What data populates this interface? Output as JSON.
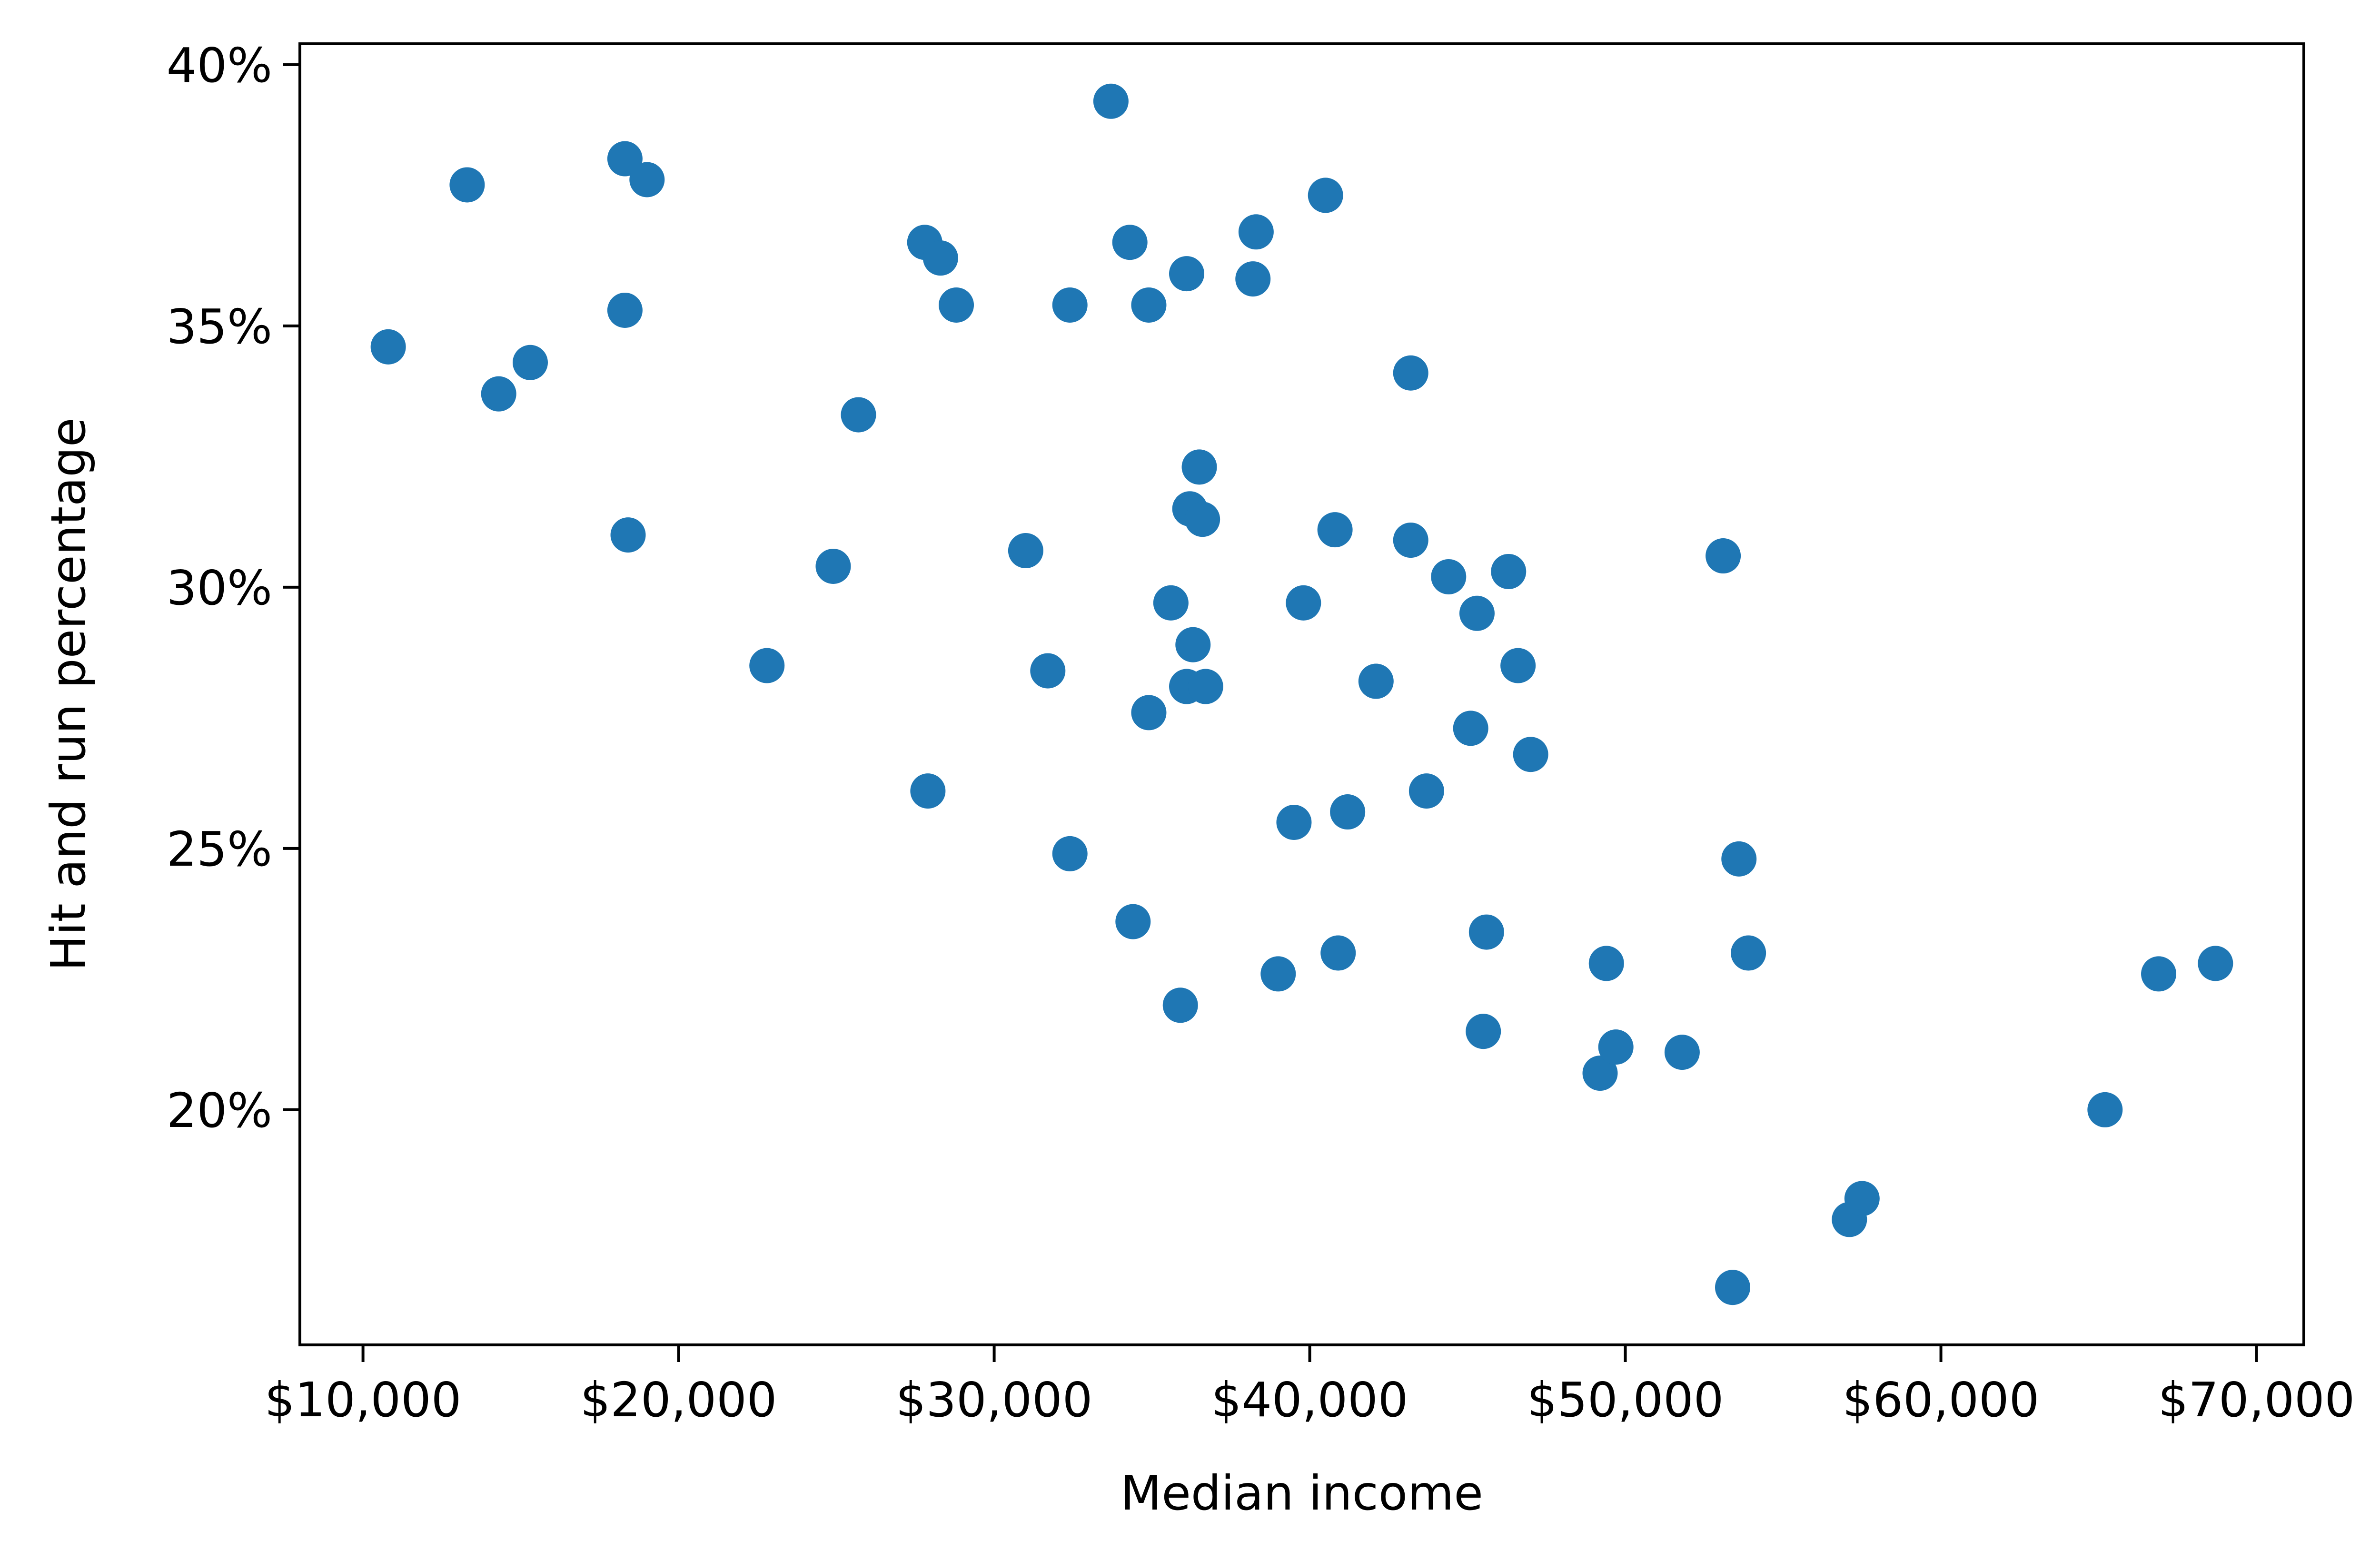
{
  "chart_data": {
    "type": "scatter",
    "title": "",
    "xlabel": "Median income",
    "ylabel": "Hit and run percentage",
    "xlim": [
      8000,
      71500
    ],
    "ylim": [
      15.5,
      40.4
    ],
    "grid": false,
    "legend": "none",
    "colors": {
      "points": "#1f77b4",
      "axes": "#000000",
      "background": "#ffffff"
    },
    "x_ticks": [
      {
        "value": 10000,
        "label": "$10,000"
      },
      {
        "value": 20000,
        "label": "$20,000"
      },
      {
        "value": 30000,
        "label": "$30,000"
      },
      {
        "value": 40000,
        "label": "$40,000"
      },
      {
        "value": 50000,
        "label": "$50,000"
      },
      {
        "value": 60000,
        "label": "$60,000"
      },
      {
        "value": 70000,
        "label": "$70,000"
      }
    ],
    "y_ticks": [
      {
        "value": 20,
        "label": "20%"
      },
      {
        "value": 25,
        "label": "25%"
      },
      {
        "value": 30,
        "label": "30%"
      },
      {
        "value": 35,
        "label": "35%"
      },
      {
        "value": 40,
        "label": "40%"
      }
    ],
    "points": [
      {
        "x": 10800,
        "y": 34.6
      },
      {
        "x": 13300,
        "y": 37.7
      },
      {
        "x": 14300,
        "y": 33.7
      },
      {
        "x": 15300,
        "y": 34.3
      },
      {
        "x": 18300,
        "y": 38.2
      },
      {
        "x": 19000,
        "y": 37.8
      },
      {
        "x": 18300,
        "y": 35.3
      },
      {
        "x": 18400,
        "y": 31.0
      },
      {
        "x": 22800,
        "y": 28.5
      },
      {
        "x": 24900,
        "y": 30.4
      },
      {
        "x": 25700,
        "y": 33.3
      },
      {
        "x": 27800,
        "y": 36.6
      },
      {
        "x": 28300,
        "y": 36.3
      },
      {
        "x": 28800,
        "y": 35.4
      },
      {
        "x": 27900,
        "y": 26.1
      },
      {
        "x": 31000,
        "y": 30.7
      },
      {
        "x": 31700,
        "y": 28.4
      },
      {
        "x": 32400,
        "y": 35.4
      },
      {
        "x": 32400,
        "y": 24.9
      },
      {
        "x": 33700,
        "y": 39.3
      },
      {
        "x": 34300,
        "y": 36.6
      },
      {
        "x": 34900,
        "y": 35.4
      },
      {
        "x": 34400,
        "y": 23.6
      },
      {
        "x": 34900,
        "y": 27.6
      },
      {
        "x": 35600,
        "y": 29.7
      },
      {
        "x": 35900,
        "y": 22.0
      },
      {
        "x": 36100,
        "y": 36.0
      },
      {
        "x": 36100,
        "y": 28.1
      },
      {
        "x": 36200,
        "y": 31.5
      },
      {
        "x": 36300,
        "y": 28.9
      },
      {
        "x": 36500,
        "y": 32.3
      },
      {
        "x": 36600,
        "y": 31.3
      },
      {
        "x": 36700,
        "y": 28.1
      },
      {
        "x": 38200,
        "y": 35.9
      },
      {
        "x": 38300,
        "y": 36.8
      },
      {
        "x": 39000,
        "y": 22.6
      },
      {
        "x": 39500,
        "y": 25.5
      },
      {
        "x": 39800,
        "y": 29.7
      },
      {
        "x": 40500,
        "y": 37.5
      },
      {
        "x": 40800,
        "y": 31.1
      },
      {
        "x": 40900,
        "y": 23.0
      },
      {
        "x": 41200,
        "y": 25.7
      },
      {
        "x": 42100,
        "y": 28.2
      },
      {
        "x": 43200,
        "y": 34.1
      },
      {
        "x": 43200,
        "y": 30.9
      },
      {
        "x": 43700,
        "y": 26.1
      },
      {
        "x": 44400,
        "y": 30.2
      },
      {
        "x": 45100,
        "y": 27.3
      },
      {
        "x": 45300,
        "y": 29.5
      },
      {
        "x": 45500,
        "y": 21.5
      },
      {
        "x": 45600,
        "y": 23.4
      },
      {
        "x": 46300,
        "y": 30.3
      },
      {
        "x": 46600,
        "y": 28.5
      },
      {
        "x": 47000,
        "y": 26.8
      },
      {
        "x": 49200,
        "y": 20.7
      },
      {
        "x": 49400,
        "y": 22.8
      },
      {
        "x": 49700,
        "y": 21.2
      },
      {
        "x": 51800,
        "y": 21.1
      },
      {
        "x": 53100,
        "y": 30.6
      },
      {
        "x": 53400,
        "y": 16.6
      },
      {
        "x": 53600,
        "y": 24.8
      },
      {
        "x": 53900,
        "y": 23.0
      },
      {
        "x": 57100,
        "y": 17.9
      },
      {
        "x": 57500,
        "y": 18.3
      },
      {
        "x": 65200,
        "y": 20.0
      },
      {
        "x": 66900,
        "y": 22.6
      },
      {
        "x": 68700,
        "y": 22.8
      }
    ]
  }
}
